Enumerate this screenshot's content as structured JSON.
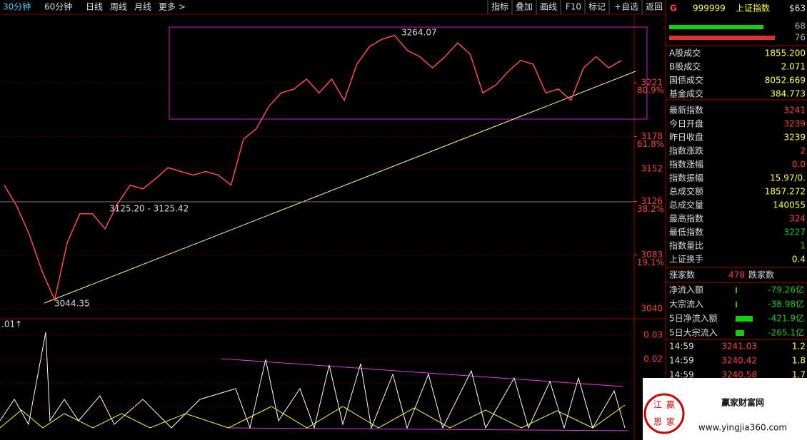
{
  "toolbar": {
    "left": [
      "30分钟",
      "60分钟",
      "日线",
      "周线",
      "月线",
      "更多 >"
    ],
    "right": [
      "指标",
      "叠加",
      "画线",
      "F10",
      "标记",
      "+自选",
      "返回"
    ]
  },
  "chart_data": {
    "type": "line",
    "color": "#ff4d4d",
    "values": [
      3139,
      3122,
      3099,
      3070,
      3047,
      3093,
      3116,
      3116,
      3104,
      3124,
      3139,
      3136,
      3144,
      3153,
      3150,
      3147,
      3150,
      3147,
      3139,
      3176,
      3184,
      3202,
      3213,
      3216,
      3224,
      3213,
      3224,
      3207,
      3236,
      3250,
      3256,
      3259,
      3247,
      3242,
      3233,
      3242,
      3253,
      3244,
      3213,
      3219,
      3230,
      3239,
      3236,
      3213,
      3216,
      3207,
      3233,
      3242,
      3233,
      3239
    ],
    "ylim": [
      3033,
      3276
    ],
    "yticks": [
      3040,
      3083,
      3126,
      3152,
      3178,
      3221
    ],
    "fib_levels": [
      {
        "value": 3083,
        "label": "19.1%"
      },
      {
        "value": 3126,
        "label": "38.2%"
      },
      {
        "value": 3178,
        "label": "61.8%"
      },
      {
        "value": 3221,
        "label": "80.9%"
      }
    ],
    "annotations": [
      "3264.07",
      "3044.35",
      "3125.20 - 3125.42"
    ],
    "indicator": {
      "label": ".01↑",
      "axis_labels": [
        "0.03",
        "0.02",
        "0.02",
        "0.02"
      ]
    }
  },
  "panel": {
    "code": "999999",
    "name": "上证指数",
    "badge": "G",
    "extra": "$63",
    "bar_values": [
      "68",
      "76"
    ],
    "rows": [
      [
        "A股成交",
        "1855.200"
      ],
      [
        "B股成交",
        "2.071"
      ],
      [
        "国债成交",
        "8052.669"
      ],
      [
        "基金成交",
        "384.773"
      ],
      [
        "最新指数",
        "3241"
      ],
      [
        "今日开盘",
        "3239"
      ],
      [
        "昨日收盘",
        "3239"
      ],
      [
        "指数涨跌",
        "2"
      ],
      [
        "指数涨幅",
        "0.0"
      ],
      [
        "指数振幅",
        "15.97/0."
      ],
      [
        "总成交额",
        "1857.272"
      ],
      [
        "总成交量",
        "140055"
      ],
      [
        "最高指数",
        "324"
      ],
      [
        "最低指数",
        "3227"
      ],
      [
        "指数量比",
        "1"
      ],
      [
        "上证换手",
        "0.4"
      ]
    ],
    "breadth": [
      "涨家数",
      "478",
      "跌家数"
    ],
    "flows": [
      [
        "净流入额",
        "-79.26亿"
      ],
      [
        "大宗流入",
        "-38.98亿"
      ],
      [
        "5日净流入额",
        "-421.9亿"
      ],
      [
        "5日大宗流入",
        "-265.1亿"
      ]
    ],
    "ticks": [
      [
        "14:59",
        "3241.03",
        "1.2"
      ],
      [
        "14:59",
        "3240.42",
        "1.8"
      ],
      [
        "14:59",
        "3240.58",
        "1.7"
      ],
      [
        "14:59",
        "3240.51",
        "1.3"
      ]
    ]
  },
  "watermark": {
    "seal": [
      "江",
      "赢",
      "恩",
      "家"
    ],
    "site": "赢家财富网",
    "url": "www.yingjia360.com"
  }
}
